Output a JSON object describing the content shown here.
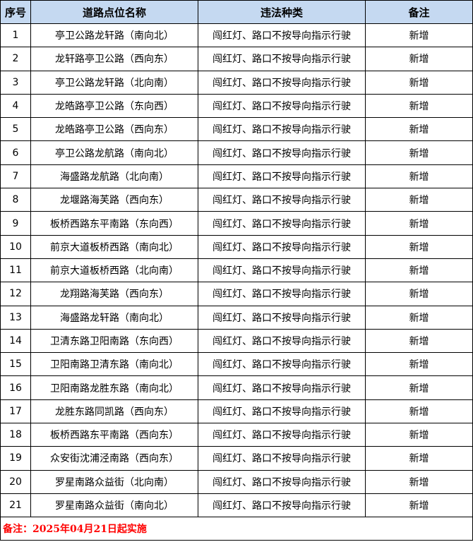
{
  "headers": {
    "index": "序号",
    "location": "道路点位名称",
    "violation": "违法种类",
    "remark": "备注"
  },
  "rows": [
    {
      "no": "1",
      "location": "亭卫公路龙轩路（南向北）",
      "violation": "闯红灯、路口不按导向指示行驶",
      "remark": "新增"
    },
    {
      "no": "2",
      "location": "龙轩路亭卫公路（西向东）",
      "violation": "闯红灯、路口不按导向指示行驶",
      "remark": "新增"
    },
    {
      "no": "3",
      "location": "亭卫公路龙轩路（北向南）",
      "violation": "闯红灯、路口不按导向指示行驶",
      "remark": "新增"
    },
    {
      "no": "4",
      "location": "龙皓路亭卫公路（东向西）",
      "violation": "闯红灯、路口不按导向指示行驶",
      "remark": "新增"
    },
    {
      "no": "5",
      "location": "龙皓路亭卫公路（西向东）",
      "violation": "闯红灯、路口不按导向指示行驶",
      "remark": "新增"
    },
    {
      "no": "6",
      "location": "亭卫公路龙航路（南向北）",
      "violation": "闯红灯、路口不按导向指示行驶",
      "remark": "新增"
    },
    {
      "no": "7",
      "location": "海盛路龙航路（北向南）",
      "violation": "闯红灯、路口不按导向指示行驶",
      "remark": "新增"
    },
    {
      "no": "8",
      "location": "龙堰路海芙路（西向东）",
      "violation": "闯红灯、路口不按导向指示行驶",
      "remark": "新增"
    },
    {
      "no": "9",
      "location": "板桥西路东平南路（东向西）",
      "violation": "闯红灯、路口不按导向指示行驶",
      "remark": "新增"
    },
    {
      "no": "10",
      "location": "前京大道板桥西路（南向北）",
      "violation": "闯红灯、路口不按导向指示行驶",
      "remark": "新增"
    },
    {
      "no": "11",
      "location": "前京大道板桥西路（北向南）",
      "violation": "闯红灯、路口不按导向指示行驶",
      "remark": "新增"
    },
    {
      "no": "12",
      "location": "龙翔路海芙路（西向东）",
      "violation": "闯红灯、路口不按导向指示行驶",
      "remark": "新增"
    },
    {
      "no": "13",
      "location": "海盛路龙轩路（南向北）",
      "violation": "闯红灯、路口不按导向指示行驶",
      "remark": "新增"
    },
    {
      "no": "14",
      "location": "卫清东路卫阳南路（东向西）",
      "violation": "闯红灯、路口不按导向指示行驶",
      "remark": "新增"
    },
    {
      "no": "15",
      "location": "卫阳南路卫清东路（南向北）",
      "violation": "闯红灯、路口不按导向指示行驶",
      "remark": "新增"
    },
    {
      "no": "16",
      "location": "卫阳南路龙胜东路（南向北）",
      "violation": "闯红灯、路口不按导向指示行驶",
      "remark": "新增"
    },
    {
      "no": "17",
      "location": "龙胜东路同凯路（西向东）",
      "violation": "闯红灯、路口不按导向指示行驶",
      "remark": "新增"
    },
    {
      "no": "18",
      "location": "板桥西路东平南路（西向东）",
      "violation": "闯红灯、路口不按导向指示行驶",
      "remark": "新增"
    },
    {
      "no": "19",
      "location": "众安街沈浦泾南路（西向东）",
      "violation": "闯红灯、路口不按导向指示行驶",
      "remark": "新增"
    },
    {
      "no": "20",
      "location": "罗星南路众益街（北向南）",
      "violation": "闯红灯、路口不按导向指示行驶",
      "remark": "新增"
    },
    {
      "no": "21",
      "location": "罗星南路众益街（南向北）",
      "violation": "闯红灯、路口不按导向指示行驶",
      "remark": "新增"
    }
  ],
  "footnote": "备注：2025年04月21日起实施",
  "colors": {
    "header_bg": "#C5D9F1",
    "footnote": "#FF0000"
  }
}
